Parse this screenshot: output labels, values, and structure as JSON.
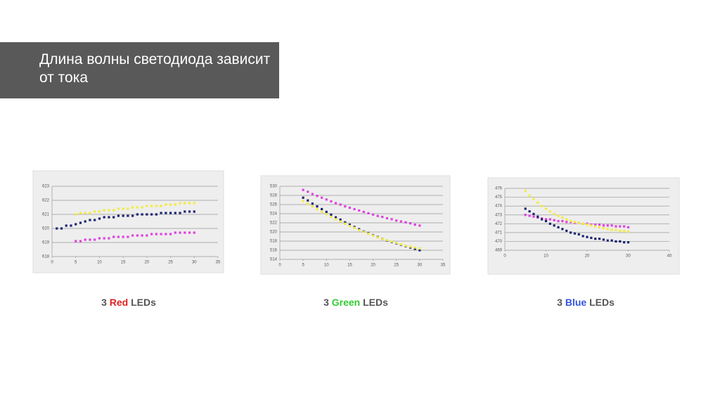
{
  "title": "Длина волны светодиода зависит от тока",
  "captions": [
    {
      "count": "3",
      "color_word": "Red",
      "rest": "LEDs"
    },
    {
      "count": "3",
      "color_word": "Green",
      "rest": "LEDs"
    },
    {
      "count": "3",
      "color_word": "Blue",
      "rest": "LEDs"
    }
  ],
  "chart_data": [
    {
      "type": "scatter",
      "grid": true,
      "x": [
        1,
        2,
        3,
        4,
        5,
        6,
        7,
        8,
        9,
        10,
        11,
        12,
        13,
        14,
        15,
        16,
        17,
        18,
        19,
        20,
        21,
        22,
        23,
        24,
        25,
        26,
        27,
        28,
        29,
        30
      ],
      "xlim": [
        0,
        35
      ],
      "xticks": [
        0,
        5,
        10,
        15,
        20,
        25,
        30,
        35
      ],
      "ylim": [
        618,
        623
      ],
      "yticks": [
        618,
        619,
        620,
        621,
        622,
        623
      ],
      "series": [
        {
          "color": "#1c2470",
          "values": [
            620.0,
            620.0,
            620.2,
            620.2,
            620.3,
            620.4,
            620.5,
            620.6,
            620.6,
            620.7,
            620.8,
            620.8,
            620.8,
            620.9,
            620.9,
            620.9,
            620.9,
            621.0,
            621.0,
            621.0,
            621.0,
            621.0,
            621.1,
            621.1,
            621.1,
            621.1,
            621.1,
            621.2,
            621.2,
            621.2
          ]
        },
        {
          "color": "#f2ec3c",
          "values": [
            null,
            null,
            null,
            null,
            621.0,
            621.1,
            621.1,
            621.1,
            621.2,
            621.2,
            621.3,
            621.3,
            621.3,
            621.4,
            621.4,
            621.4,
            621.5,
            621.5,
            621.5,
            621.6,
            621.6,
            621.6,
            621.6,
            621.7,
            621.7,
            621.7,
            621.8,
            621.8,
            621.8,
            621.8
          ]
        },
        {
          "color": "#e040e0",
          "values": [
            null,
            null,
            null,
            null,
            619.1,
            619.1,
            619.2,
            619.2,
            619.2,
            619.3,
            619.3,
            619.3,
            619.4,
            619.4,
            619.4,
            619.4,
            619.5,
            619.5,
            619.5,
            619.5,
            619.6,
            619.6,
            619.6,
            619.6,
            619.6,
            619.7,
            619.7,
            619.7,
            619.7,
            619.7
          ]
        }
      ]
    },
    {
      "type": "scatter",
      "grid": true,
      "x": [
        5,
        6,
        7,
        8,
        9,
        10,
        11,
        12,
        13,
        14,
        15,
        16,
        17,
        18,
        19,
        20,
        21,
        22,
        23,
        24,
        25,
        26,
        27,
        28,
        29,
        30
      ],
      "xlim": [
        0,
        35
      ],
      "xticks": [
        0,
        5,
        10,
        15,
        20,
        25,
        30,
        35
      ],
      "ylim": [
        514,
        530
      ],
      "yticks": [
        514,
        516,
        518,
        520,
        522,
        524,
        526,
        528,
        530
      ],
      "series": [
        {
          "color": "#e040e0",
          "values": [
            529.2,
            528.8,
            528.3,
            527.9,
            527.5,
            527.1,
            526.7,
            526.3,
            526.0,
            525.6,
            525.3,
            525.0,
            524.7,
            524.4,
            524.1,
            523.8,
            523.5,
            523.3,
            523.0,
            522.8,
            522.5,
            522.3,
            522.1,
            521.9,
            521.6,
            521.4
          ]
        },
        {
          "color": "#1c2470",
          "values": [
            527.5,
            526.9,
            526.2,
            525.6,
            525.0,
            524.4,
            523.8,
            523.2,
            522.7,
            522.1,
            521.6,
            521.1,
            520.6,
            520.1,
            519.7,
            519.3,
            518.9,
            518.5,
            518.1,
            517.8,
            517.5,
            517.2,
            516.9,
            516.6,
            516.3,
            516.0
          ]
        },
        {
          "color": "#f2ec3c",
          "values": [
            526.8,
            526.2,
            525.6,
            525.0,
            524.4,
            523.9,
            523.3,
            522.8,
            522.3,
            521.8,
            521.3,
            520.9,
            520.4,
            520.0,
            519.6,
            519.2,
            518.8,
            518.5,
            518.2,
            517.9,
            517.6,
            517.3,
            517.0,
            516.8,
            516.6,
            516.4
          ]
        }
      ]
    },
    {
      "type": "scatter",
      "grid": true,
      "x": [
        5,
        6,
        7,
        8,
        9,
        10,
        11,
        12,
        13,
        14,
        15,
        16,
        17,
        18,
        19,
        20,
        21,
        22,
        23,
        24,
        25,
        26,
        27,
        28,
        29,
        30
      ],
      "xlim": [
        0,
        40
      ],
      "xticks": [
        0,
        10,
        20,
        30,
        40
      ],
      "ylim": [
        469,
        476
      ],
      "yticks": [
        469,
        470,
        471,
        472,
        473,
        474,
        475,
        476
      ],
      "series": [
        {
          "color": "#e040e0",
          "values": [
            473.0,
            472.9,
            472.8,
            472.7,
            472.6,
            472.5,
            472.5,
            472.4,
            472.3,
            472.3,
            472.2,
            472.2,
            472.1,
            472.1,
            472.0,
            472.0,
            471.9,
            471.9,
            471.9,
            471.8,
            471.8,
            471.8,
            471.7,
            471.7,
            471.7,
            471.6
          ]
        },
        {
          "color": "#1c2470",
          "values": [
            473.7,
            473.4,
            473.1,
            472.8,
            472.5,
            472.3,
            472.0,
            471.8,
            471.6,
            471.4,
            471.2,
            471.0,
            470.9,
            470.8,
            470.6,
            470.5,
            470.4,
            470.3,
            470.3,
            470.2,
            470.1,
            470.1,
            470.0,
            470.0,
            469.9,
            469.9
          ]
        },
        {
          "color": "#f2ec3c",
          "values": [
            475.7,
            475.2,
            474.8,
            474.4,
            474.0,
            473.7,
            473.4,
            473.1,
            472.9,
            472.7,
            472.5,
            472.3,
            472.2,
            472.1,
            472.0,
            471.9,
            471.8,
            471.7,
            471.6,
            471.5,
            471.4,
            471.3,
            471.3,
            471.2,
            471.2,
            471.1
          ]
        }
      ]
    }
  ]
}
